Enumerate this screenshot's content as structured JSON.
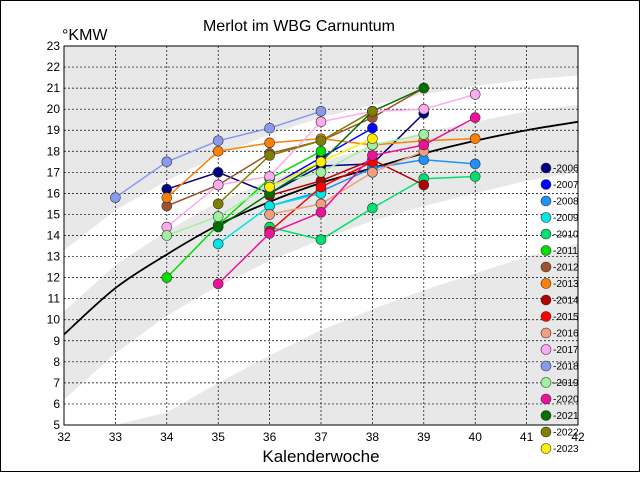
{
  "chart_data": {
    "type": "line",
    "title": "Merlot im WBG Carnuntum",
    "xlabel": "Kalenderwoche",
    "ylabel": "°KMW",
    "xlim": [
      32,
      42
    ],
    "ylim": [
      5,
      23
    ],
    "xticks": [
      32,
      33,
      34,
      35,
      36,
      37,
      38,
      39,
      40,
      41,
      42
    ],
    "yticks": [
      5,
      6,
      7,
      8,
      9,
      10,
      11,
      12,
      13,
      14,
      15,
      16,
      17,
      18,
      19,
      20,
      21,
      22,
      23
    ],
    "grid": true,
    "legend_position": "right",
    "trend_curve": {
      "x": [
        32,
        33,
        34,
        35,
        36,
        37,
        38,
        39,
        40,
        41,
        42
      ],
      "y": [
        9.3,
        11.5,
        13.1,
        14.5,
        15.6,
        16.5,
        17.2,
        17.9,
        18.5,
        19.0,
        19.4
      ]
    },
    "band_upper": {
      "x": [
        32,
        33,
        34,
        35,
        36,
        37,
        38,
        39,
        40,
        41,
        42
      ],
      "outer": [
        13.3,
        15.2,
        16.6,
        17.8,
        18.8,
        19.6,
        20.2,
        20.7,
        21.1,
        21.4,
        21.6
      ],
      "inner": [
        10.4,
        12.6,
        14.2,
        15.6,
        16.6,
        17.5,
        18.2,
        18.9,
        19.4,
        19.9,
        20.2
      ]
    },
    "band_lower": {
      "x": [
        32,
        33,
        34,
        35,
        36,
        37,
        38,
        39,
        40,
        41,
        42
      ],
      "inner": [
        6.2,
        8.4,
        10.2,
        11.6,
        12.8,
        13.8,
        14.7,
        15.4,
        16.0,
        16.6,
        17.0
      ],
      "outer": [
        5.0,
        5.0,
        5.6,
        7.0,
        8.3,
        9.5,
        10.5,
        11.4,
        12.2,
        13.0,
        13.6
      ]
    },
    "series": [
      {
        "name": "2006",
        "color": "#000080",
        "x": [
          34,
          35,
          36,
          37,
          38,
          39
        ],
        "y": [
          16.2,
          17.0,
          16.0,
          17.3,
          17.4,
          19.8
        ]
      },
      {
        "name": "2007",
        "color": "#0000ff",
        "x": [
          36,
          37,
          38
        ],
        "y": [
          16.3,
          17.7,
          19.1
        ]
      },
      {
        "name": "2008",
        "color": "#1e90ff",
        "x": [
          36,
          37,
          38,
          39,
          40
        ],
        "y": [
          15.4,
          16.1,
          17.2,
          17.6,
          17.4
        ]
      },
      {
        "name": "2009",
        "color": "#00e5e5",
        "x": [
          35,
          36,
          37
        ],
        "y": [
          13.6,
          15.4,
          16.0
        ]
      },
      {
        "name": "2010",
        "color": "#00e070",
        "x": [
          36,
          37,
          38,
          39,
          40
        ],
        "y": [
          14.4,
          13.8,
          15.3,
          16.7,
          16.8
        ]
      },
      {
        "name": "2011",
        "color": "#00e000",
        "x": [
          34,
          35,
          36,
          37
        ],
        "y": [
          12.0,
          14.5,
          16.7,
          18.0
        ]
      },
      {
        "name": "2012",
        "color": "#a0522d",
        "x": [
          34,
          35,
          36,
          37,
          38,
          39
        ],
        "y": [
          15.4,
          16.4,
          17.9,
          18.5,
          19.6,
          21.0
        ]
      },
      {
        "name": "2013",
        "color": "#ff8000",
        "x": [
          34,
          35,
          36,
          37,
          38,
          39,
          40
        ],
        "y": [
          15.8,
          18.0,
          18.4,
          18.6,
          18.3,
          18.5,
          18.6
        ]
      },
      {
        "name": "2014",
        "color": "#b00000",
        "x": [
          36,
          37,
          38,
          39
        ],
        "y": [
          15.9,
          16.6,
          17.6,
          16.4
        ]
      },
      {
        "name": "2015",
        "color": "#ff0000",
        "x": [
          36,
          37,
          38
        ],
        "y": [
          14.2,
          16.3,
          17.5
        ]
      },
      {
        "name": "2016",
        "color": "#f0a080",
        "x": [
          36,
          37,
          38,
          39
        ],
        "y": [
          15.0,
          15.5,
          17.0,
          18.0
        ]
      },
      {
        "name": "2017",
        "color": "#ffaaee",
        "x": [
          34,
          35,
          36,
          37,
          38,
          39,
          40
        ],
        "y": [
          14.4,
          16.4,
          16.8,
          19.4,
          19.9,
          20.0,
          20.7
        ]
      },
      {
        "name": "2018",
        "color": "#8899ee",
        "x": [
          33,
          34,
          35,
          36,
          37
        ],
        "y": [
          15.8,
          17.5,
          18.5,
          19.1,
          19.9
        ]
      },
      {
        "name": "2019",
        "color": "#a0f0a0",
        "x": [
          34,
          35,
          36,
          37,
          38,
          39
        ],
        "y": [
          14.0,
          14.9,
          16.4,
          17.0,
          18.3,
          18.8
        ]
      },
      {
        "name": "2020",
        "color": "#ee1199",
        "x": [
          35,
          36,
          37,
          38,
          39,
          40
        ],
        "y": [
          11.7,
          14.1,
          15.1,
          17.8,
          18.3,
          19.6
        ]
      },
      {
        "name": "2021",
        "color": "#007000",
        "x": [
          35,
          36,
          37,
          38,
          39
        ],
        "y": [
          14.4,
          16.0,
          17.5,
          19.9,
          21.0
        ]
      },
      {
        "name": "2022",
        "color": "#808000",
        "x": [
          35,
          36,
          37,
          38
        ],
        "y": [
          15.5,
          17.8,
          18.5,
          19.9
        ]
      },
      {
        "name": "2023",
        "color": "#ffee00",
        "x": [
          36,
          37,
          38
        ],
        "y": [
          16.3,
          17.5,
          18.6
        ]
      }
    ]
  }
}
